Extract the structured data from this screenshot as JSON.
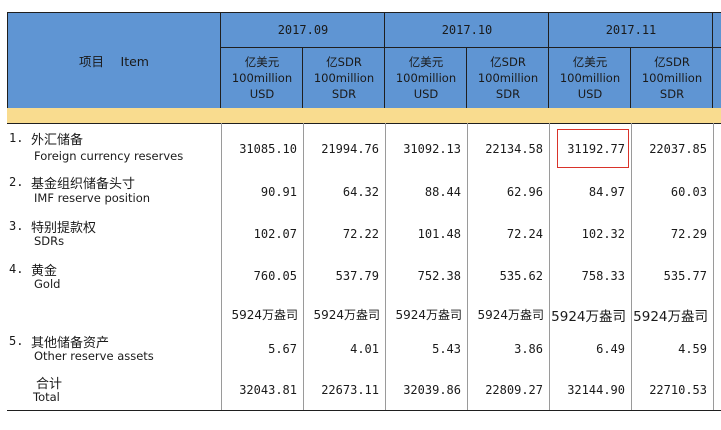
{
  "header": {
    "item_label": "项目　 Item",
    "periods": [
      "2017.09",
      "2017.10",
      "2017.11"
    ],
    "units": [
      {
        "zh": "亿美元",
        "en": "100million",
        "code": "USD"
      },
      {
        "zh": "亿SDR",
        "en": "100million",
        "code": "SDR"
      }
    ]
  },
  "rows": [
    {
      "num": "1.",
      "zh": "外汇储备",
      "en": "Foreign currency reserves",
      "values": [
        "31085.10",
        "21994.76",
        "31092.13",
        "22134.58",
        "31192.77",
        "22037.85"
      ]
    },
    {
      "num": "2.",
      "zh": "基金组织储备头寸",
      "en": "IMF reserve position",
      "values": [
        "90.91",
        "64.32",
        "88.44",
        "62.96",
        "84.97",
        "60.03"
      ]
    },
    {
      "num": "3.",
      "zh": "特别提款权",
      "en": "SDRs",
      "values": [
        "102.07",
        "72.22",
        "101.48",
        "72.24",
        "102.32",
        "72.29"
      ]
    },
    {
      "num": "4.",
      "zh": "黄金",
      "en": "Gold",
      "values": [
        "760.05",
        "537.79",
        "752.38",
        "535.62",
        "758.33",
        "535.77"
      ]
    },
    {
      "num": "",
      "zh": "",
      "en": "",
      "values": [
        "5924万盎司",
        "5924万盎司",
        "5924万盎司",
        "5924万盎司",
        "5924万盎司",
        "5924万盎司"
      ]
    },
    {
      "num": "5.",
      "zh": "其他储备资产",
      "en": "Other reserve assets",
      "values": [
        "5.67",
        "4.01",
        "5.43",
        "3.86",
        "6.49",
        "4.59"
      ]
    },
    {
      "num": "",
      "zh": "合计",
      "en": "Total",
      "values": [
        "32043.81",
        "22673.11",
        "32039.86",
        "22809.27",
        "32144.90",
        "22710.53"
      ]
    }
  ],
  "colors": {
    "header_bg": "#5f95d3",
    "band": "#f9dc8f",
    "highlight": "#d9332a"
  }
}
